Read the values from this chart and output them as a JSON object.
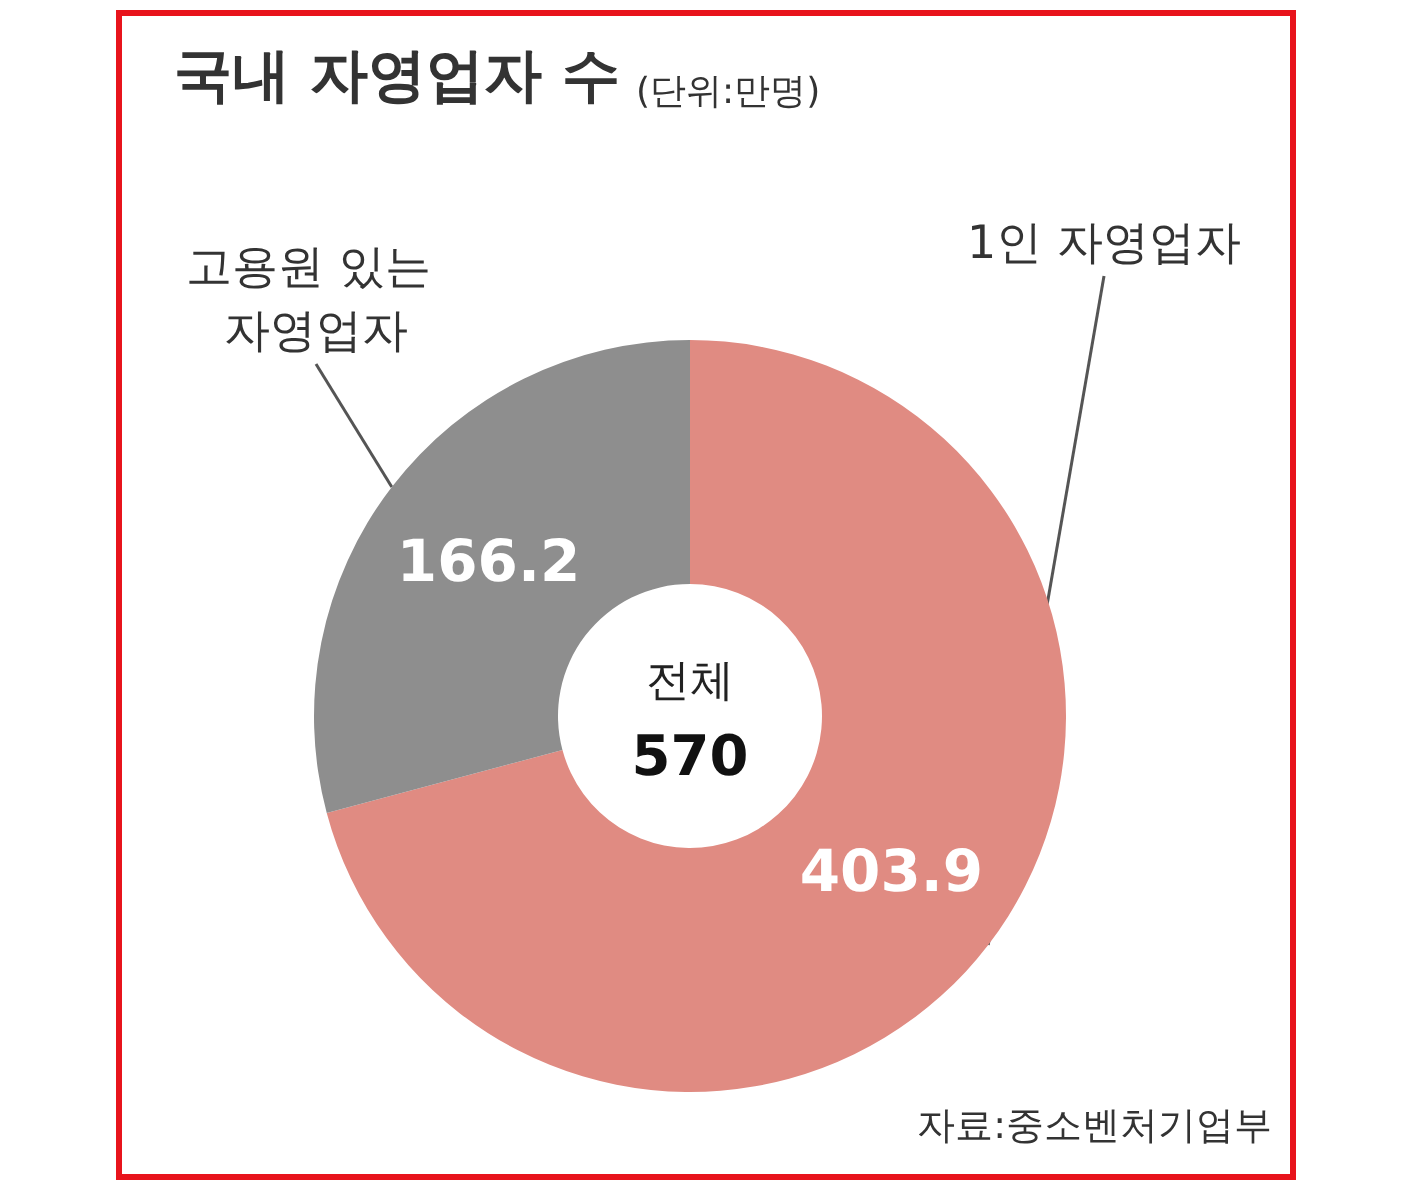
{
  "chart_data": {
    "type": "donut",
    "title": "국내 자영업자 수",
    "subtitle": "(단위:만명)",
    "categories": [
      "1인 자영업자",
      "고용원 있는 자영업자"
    ],
    "values": [
      403.9,
      166.2
    ],
    "colors": [
      "#e08b82",
      "#8e8e8e"
    ],
    "data_labels": true,
    "legend": false,
    "annotations": [
      "전체",
      "570",
      "자료:중소벤처기업부"
    ]
  }
}
